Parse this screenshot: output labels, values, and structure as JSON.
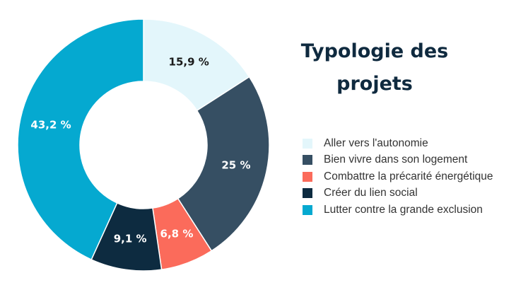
{
  "title_lines": [
    "Typologie des",
    "projets"
  ],
  "chart_data": {
    "type": "pie",
    "title": "Typologie des projets",
    "donut": true,
    "legend_position": "right",
    "slices": [
      {
        "label": "Aller vers l'autonomie",
        "value": 15.9,
        "display": "15,9 %",
        "color": "#e3f6fb",
        "label_color": "#1a1a1a"
      },
      {
        "label": "Bien vivre dans son logement",
        "value": 25,
        "display": "25 %",
        "color": "#364f63",
        "label_color": "#ffffff"
      },
      {
        "label": "Combattre la précarité énergétique",
        "value": 6.8,
        "display": "6,8 %",
        "color": "#fb6b5b",
        "label_color": "#ffffff"
      },
      {
        "label": "Créer du lien social",
        "value": 9.1,
        "display": "9,1 %",
        "color": "#0d2b40",
        "label_color": "#ffffff"
      },
      {
        "label": "Lutter contre la grande exclusion",
        "value": 43.2,
        "display": "43,2 %",
        "color": "#05a9d0",
        "label_color": "#ffffff"
      }
    ]
  }
}
